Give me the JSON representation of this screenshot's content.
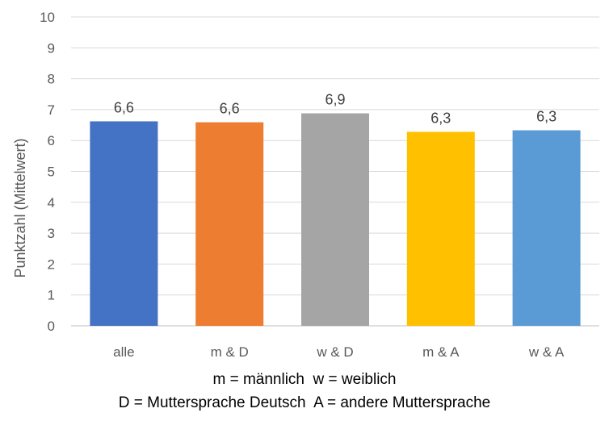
{
  "chart_data": {
    "type": "bar",
    "title": "",
    "xlabel": "",
    "ylabel": "Punktzahl (Mittelwert)",
    "categories": [
      "alle",
      "m & D",
      "w & D",
      "m & A",
      "w & A"
    ],
    "values": [
      6.6,
      6.6,
      6.9,
      6.3,
      6.3
    ],
    "value_labels": [
      "6,6",
      "6,6",
      "6,9",
      "6,3",
      "6,3"
    ],
    "bar_values": [
      6.62,
      6.59,
      6.88,
      6.28,
      6.33
    ],
    "ylim": [
      0,
      10
    ],
    "yticks": [
      "0",
      "1",
      "2",
      "3",
      "4",
      "5",
      "6",
      "7",
      "8",
      "9",
      "10"
    ],
    "grid": true,
    "legend": "none",
    "colors": [
      "#4472C4",
      "#ED7D31",
      "#A5A5A5",
      "#FFC000",
      "#5B9BD5"
    ]
  },
  "notes": {
    "line1": "m = männlich  w = weiblich",
    "line2": "D = Muttersprache Deutsch  A = andere Muttersprache"
  }
}
